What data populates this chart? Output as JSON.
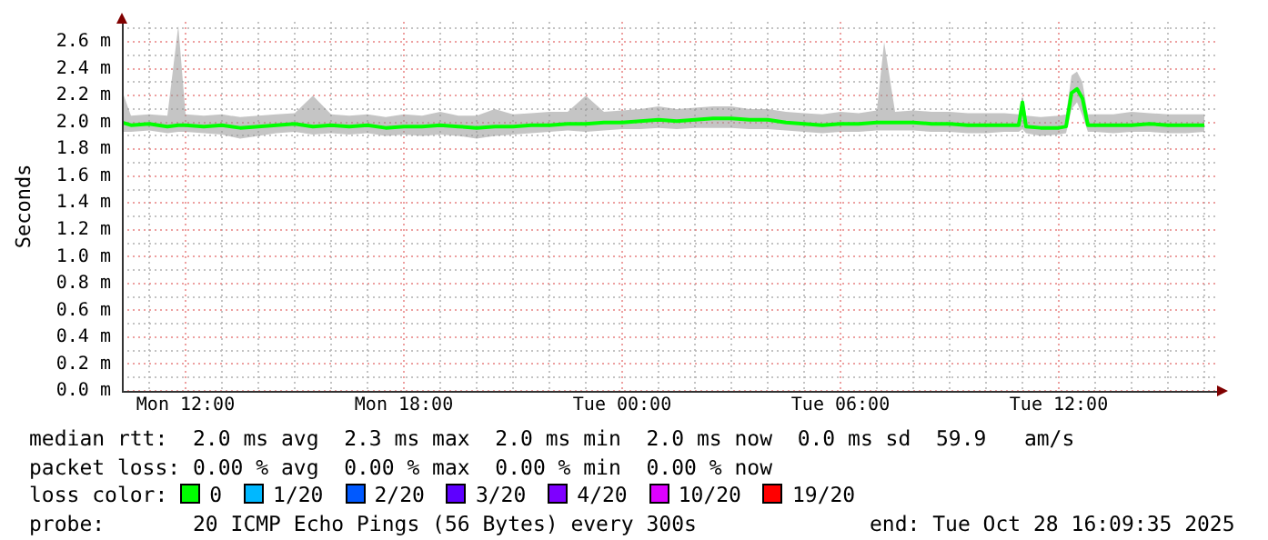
{
  "chart_data": {
    "type": "line",
    "ylabel": "Seconds",
    "legend_title": "loss color:",
    "legend": "bottom",
    "grid": true,
    "xlim": [
      "2025-10-27T10:15",
      "2025-10-28T16:18"
    ],
    "xticks": [
      {
        "value": "2025-10-27T11:00",
        "label": null
      },
      {
        "value": "2025-10-27T12:00",
        "label": "Mon 12:00"
      },
      {
        "value": "2025-10-27T13:00",
        "label": null
      },
      {
        "value": "2025-10-27T14:00",
        "label": null
      },
      {
        "value": "2025-10-27T15:00",
        "label": null
      },
      {
        "value": "2025-10-27T16:00",
        "label": null
      },
      {
        "value": "2025-10-27T17:00",
        "label": null
      },
      {
        "value": "2025-10-27T18:00",
        "label": "Mon 18:00"
      },
      {
        "value": "2025-10-27T19:00",
        "label": null
      },
      {
        "value": "2025-10-27T20:00",
        "label": null
      },
      {
        "value": "2025-10-27T21:00",
        "label": null
      },
      {
        "value": "2025-10-27T22:00",
        "label": null
      },
      {
        "value": "2025-10-27T23:00",
        "label": null
      },
      {
        "value": "2025-10-28T00:00",
        "label": "Tue 00:00"
      },
      {
        "value": "2025-10-28T01:00",
        "label": null
      },
      {
        "value": "2025-10-28T02:00",
        "label": null
      },
      {
        "value": "2025-10-28T03:00",
        "label": null
      },
      {
        "value": "2025-10-28T04:00",
        "label": null
      },
      {
        "value": "2025-10-28T05:00",
        "label": null
      },
      {
        "value": "2025-10-28T06:00",
        "label": "Tue 06:00"
      },
      {
        "value": "2025-10-28T07:00",
        "label": null
      },
      {
        "value": "2025-10-28T08:00",
        "label": null
      },
      {
        "value": "2025-10-28T09:00",
        "label": null
      },
      {
        "value": "2025-10-28T10:00",
        "label": null
      },
      {
        "value": "2025-10-28T11:00",
        "label": null
      },
      {
        "value": "2025-10-28T12:00",
        "label": "Tue 12:00"
      },
      {
        "value": "2025-10-28T13:00",
        "label": null
      },
      {
        "value": "2025-10-28T14:00",
        "label": null
      },
      {
        "value": "2025-10-28T15:00",
        "label": null
      },
      {
        "value": "2025-10-28T16:00",
        "label": null
      }
    ],
    "ylim": [
      0,
      2.75
    ],
    "yticks": [
      {
        "value": 0,
        "label": "0.0 m"
      },
      {
        "value": 0.1,
        "label": null
      },
      {
        "value": 0.2,
        "label": "0.2 m"
      },
      {
        "value": 0.3,
        "label": null
      },
      {
        "value": 0.4,
        "label": "0.4 m"
      },
      {
        "value": 0.5,
        "label": null
      },
      {
        "value": 0.6,
        "label": "0.6 m"
      },
      {
        "value": 0.7,
        "label": null
      },
      {
        "value": 0.8,
        "label": "0.8 m"
      },
      {
        "value": 0.9,
        "label": null
      },
      {
        "value": 1.0,
        "label": "1.0 m"
      },
      {
        "value": 1.1,
        "label": null
      },
      {
        "value": 1.2,
        "label": "1.2 m"
      },
      {
        "value": 1.3,
        "label": null
      },
      {
        "value": 1.4,
        "label": "1.4 m"
      },
      {
        "value": 1.5,
        "label": null
      },
      {
        "value": 1.6,
        "label": "1.6 m"
      },
      {
        "value": 1.7,
        "label": null
      },
      {
        "value": 1.8,
        "label": "1.8 m"
      },
      {
        "value": 1.9,
        "label": null
      },
      {
        "value": 2.0,
        "label": "2.0 m"
      },
      {
        "value": 2.1,
        "label": null
      },
      {
        "value": 2.2,
        "label": "2.2 m"
      },
      {
        "value": 2.3,
        "label": null
      },
      {
        "value": 2.4,
        "label": "2.4 m"
      },
      {
        "value": 2.5,
        "label": null
      },
      {
        "value": 2.6,
        "label": "2.6 m"
      },
      {
        "value": 2.7,
        "label": null
      }
    ],
    "x": [
      "2025-10-27T10:15",
      "2025-10-27T10:30",
      "2025-10-27T11:00",
      "2025-10-27T11:30",
      "2025-10-27T11:48",
      "2025-10-27T12:00",
      "2025-10-27T12:30",
      "2025-10-27T13:00",
      "2025-10-27T13:30",
      "2025-10-27T14:00",
      "2025-10-27T14:30",
      "2025-10-27T15:00",
      "2025-10-27T15:30",
      "2025-10-27T16:00",
      "2025-10-27T16:30",
      "2025-10-27T17:00",
      "2025-10-27T17:30",
      "2025-10-27T18:00",
      "2025-10-27T18:30",
      "2025-10-27T19:00",
      "2025-10-27T19:30",
      "2025-10-27T20:00",
      "2025-10-27T20:30",
      "2025-10-27T21:00",
      "2025-10-27T21:30",
      "2025-10-27T22:00",
      "2025-10-27T22:30",
      "2025-10-27T23:00",
      "2025-10-27T23:30",
      "2025-10-28T00:00",
      "2025-10-28T00:30",
      "2025-10-28T01:00",
      "2025-10-28T01:30",
      "2025-10-28T02:00",
      "2025-10-28T02:30",
      "2025-10-28T03:00",
      "2025-10-28T03:30",
      "2025-10-28T04:00",
      "2025-10-28T04:30",
      "2025-10-28T05:00",
      "2025-10-28T05:30",
      "2025-10-28T06:00",
      "2025-10-28T06:30",
      "2025-10-28T07:00",
      "2025-10-28T07:12",
      "2025-10-28T07:30",
      "2025-10-28T08:00",
      "2025-10-28T08:30",
      "2025-10-28T09:00",
      "2025-10-28T09:30",
      "2025-10-28T10:00",
      "2025-10-28T10:30",
      "2025-10-28T10:54",
      "2025-10-28T11:00",
      "2025-10-28T11:06",
      "2025-10-28T11:30",
      "2025-10-28T12:00",
      "2025-10-28T12:12",
      "2025-10-28T12:21",
      "2025-10-28T12:30",
      "2025-10-28T12:39",
      "2025-10-28T12:48",
      "2025-10-28T13:00",
      "2025-10-28T13:30",
      "2025-10-28T14:00",
      "2025-10-28T14:30",
      "2025-10-28T15:00",
      "2025-10-28T15:30",
      "2025-10-28T16:00"
    ],
    "series": [
      {
        "name": "0",
        "color": "#00ff00",
        "values": [
          2.0,
          1.98,
          1.99,
          1.97,
          1.98,
          1.98,
          1.97,
          1.98,
          1.96,
          1.97,
          1.98,
          1.99,
          1.97,
          1.98,
          1.97,
          1.98,
          1.96,
          1.97,
          1.97,
          1.98,
          1.97,
          1.96,
          1.97,
          1.97,
          1.98,
          1.98,
          1.99,
          1.99,
          2.0,
          2.0,
          2.01,
          2.02,
          2.01,
          2.02,
          2.03,
          2.03,
          2.02,
          2.02,
          2.0,
          1.99,
          1.98,
          1.99,
          1.99,
          2.0,
          2.0,
          2.0,
          2.0,
          1.99,
          1.99,
          1.98,
          1.98,
          1.98,
          1.98,
          2.15,
          1.97,
          1.96,
          1.96,
          1.97,
          2.22,
          2.25,
          2.18,
          1.98,
          1.98,
          1.98,
          1.98,
          1.99,
          1.98,
          1.98,
          1.98
        ],
        "lower": [
          1.93,
          1.93,
          1.94,
          1.92,
          1.93,
          1.93,
          1.92,
          1.91,
          1.88,
          1.9,
          1.92,
          1.93,
          1.91,
          1.92,
          1.91,
          1.92,
          1.9,
          1.91,
          1.9,
          1.91,
          1.9,
          1.88,
          1.9,
          1.91,
          1.92,
          1.93,
          1.94,
          1.93,
          1.94,
          1.95,
          1.95,
          1.96,
          1.95,
          1.96,
          1.96,
          1.96,
          1.95,
          1.95,
          1.94,
          1.93,
          1.92,
          1.93,
          1.93,
          1.94,
          1.94,
          1.94,
          1.94,
          1.93,
          1.93,
          1.92,
          1.92,
          1.93,
          1.93,
          1.95,
          1.92,
          1.9,
          1.91,
          1.92,
          2.1,
          2.15,
          2.05,
          1.93,
          1.93,
          1.92,
          1.93,
          1.93,
          1.92,
          1.92,
          1.93
        ],
        "upper": [
          2.24,
          2.05,
          2.06,
          2.05,
          2.72,
          2.06,
          2.05,
          2.06,
          2.04,
          2.05,
          2.06,
          2.07,
          2.2,
          2.06,
          2.05,
          2.06,
          2.04,
          2.06,
          2.05,
          2.08,
          2.05,
          2.05,
          2.1,
          2.06,
          2.07,
          2.08,
          2.08,
          2.2,
          2.08,
          2.09,
          2.1,
          2.12,
          2.1,
          2.11,
          2.12,
          2.12,
          2.1,
          2.1,
          2.08,
          2.07,
          2.06,
          2.08,
          2.07,
          2.09,
          2.6,
          2.08,
          2.09,
          2.08,
          2.08,
          2.07,
          2.07,
          2.07,
          2.06,
          2.2,
          2.05,
          2.04,
          2.05,
          2.06,
          2.35,
          2.38,
          2.3,
          2.06,
          2.06,
          2.06,
          2.08,
          2.07,
          2.06,
          2.06,
          2.06
        ]
      },
      {
        "name": "1/20",
        "color": "#00b8ff",
        "values": [
          null,
          null,
          null,
          null,
          null,
          null,
          null,
          null,
          null,
          null,
          null,
          null,
          null,
          null,
          null,
          null,
          null,
          null,
          null,
          null,
          null,
          null,
          null,
          null,
          null,
          null,
          null,
          null,
          null,
          null,
          null,
          null,
          null,
          null,
          null,
          null,
          null,
          null,
          null,
          null,
          null,
          null,
          null,
          null,
          null,
          null,
          null,
          null,
          null,
          null,
          null,
          null,
          null,
          null,
          null,
          null,
          null,
          null,
          null,
          null,
          null,
          null,
          null,
          null,
          null,
          null,
          null,
          null,
          null
        ]
      },
      {
        "name": "2/20",
        "color": "#0059ff",
        "values": [
          null,
          null,
          null,
          null,
          null,
          null,
          null,
          null,
          null,
          null,
          null,
          null,
          null,
          null,
          null,
          null,
          null,
          null,
          null,
          null,
          null,
          null,
          null,
          null,
          null,
          null,
          null,
          null,
          null,
          null,
          null,
          null,
          null,
          null,
          null,
          null,
          null,
          null,
          null,
          null,
          null,
          null,
          null,
          null,
          null,
          null,
          null,
          null,
          null,
          null,
          null,
          null,
          null,
          null,
          null,
          null,
          null,
          null,
          null,
          null,
          null,
          null,
          null,
          null,
          null,
          null,
          null,
          null,
          null
        ]
      },
      {
        "name": "3/20",
        "color": "#5e00ff",
        "values": [
          null,
          null,
          null,
          null,
          null,
          null,
          null,
          null,
          null,
          null,
          null,
          null,
          null,
          null,
          null,
          null,
          null,
          null,
          null,
          null,
          null,
          null,
          null,
          null,
          null,
          null,
          null,
          null,
          null,
          null,
          null,
          null,
          null,
          null,
          null,
          null,
          null,
          null,
          null,
          null,
          null,
          null,
          null,
          null,
          null,
          null,
          null,
          null,
          null,
          null,
          null,
          null,
          null,
          null,
          null,
          null,
          null,
          null,
          null,
          null,
          null,
          null,
          null,
          null,
          null,
          null,
          null,
          null,
          null
        ]
      },
      {
        "name": "4/20",
        "color": "#7e00ff",
        "values": [
          null,
          null,
          null,
          null,
          null,
          null,
          null,
          null,
          null,
          null,
          null,
          null,
          null,
          null,
          null,
          null,
          null,
          null,
          null,
          null,
          null,
          null,
          null,
          null,
          null,
          null,
          null,
          null,
          null,
          null,
          null,
          null,
          null,
          null,
          null,
          null,
          null,
          null,
          null,
          null,
          null,
          null,
          null,
          null,
          null,
          null,
          null,
          null,
          null,
          null,
          null,
          null,
          null,
          null,
          null,
          null,
          null,
          null,
          null,
          null,
          null,
          null,
          null,
          null,
          null,
          null,
          null,
          null,
          null
        ]
      },
      {
        "name": "10/20",
        "color": "#dd00ff",
        "values": [
          null,
          null,
          null,
          null,
          null,
          null,
          null,
          null,
          null,
          null,
          null,
          null,
          null,
          null,
          null,
          null,
          null,
          null,
          null,
          null,
          null,
          null,
          null,
          null,
          null,
          null,
          null,
          null,
          null,
          null,
          null,
          null,
          null,
          null,
          null,
          null,
          null,
          null,
          null,
          null,
          null,
          null,
          null,
          null,
          null,
          null,
          null,
          null,
          null,
          null,
          null,
          null,
          null,
          null,
          null,
          null,
          null,
          null,
          null,
          null,
          null,
          null,
          null,
          null,
          null,
          null,
          null,
          null,
          null
        ]
      },
      {
        "name": "19/20",
        "color": "#ff0000",
        "values": [
          null,
          null,
          null,
          null,
          null,
          null,
          null,
          null,
          null,
          null,
          null,
          null,
          null,
          null,
          null,
          null,
          null,
          null,
          null,
          null,
          null,
          null,
          null,
          null,
          null,
          null,
          null,
          null,
          null,
          null,
          null,
          null,
          null,
          null,
          null,
          null,
          null,
          null,
          null,
          null,
          null,
          null,
          null,
          null,
          null,
          null,
          null,
          null,
          null,
          null,
          null,
          null,
          null,
          null,
          null,
          null,
          null,
          null,
          null,
          null,
          null,
          null,
          null,
          null,
          null,
          null,
          null,
          null,
          null
        ]
      }
    ],
    "annotations": [
      "median rtt:  2.0 ms avg  2.3 ms max  2.0 ms min  2.0 ms now  0.0 ms sd  59.9   am/s",
      "packet loss: 0.00 % avg  0.00 % max  0.00 % min  0.00 % now",
      "probe:       20 ICMP Echo Pings (56 Bytes) every 300s",
      "end: Tue Oct 28 16:09:35 2025"
    ]
  }
}
